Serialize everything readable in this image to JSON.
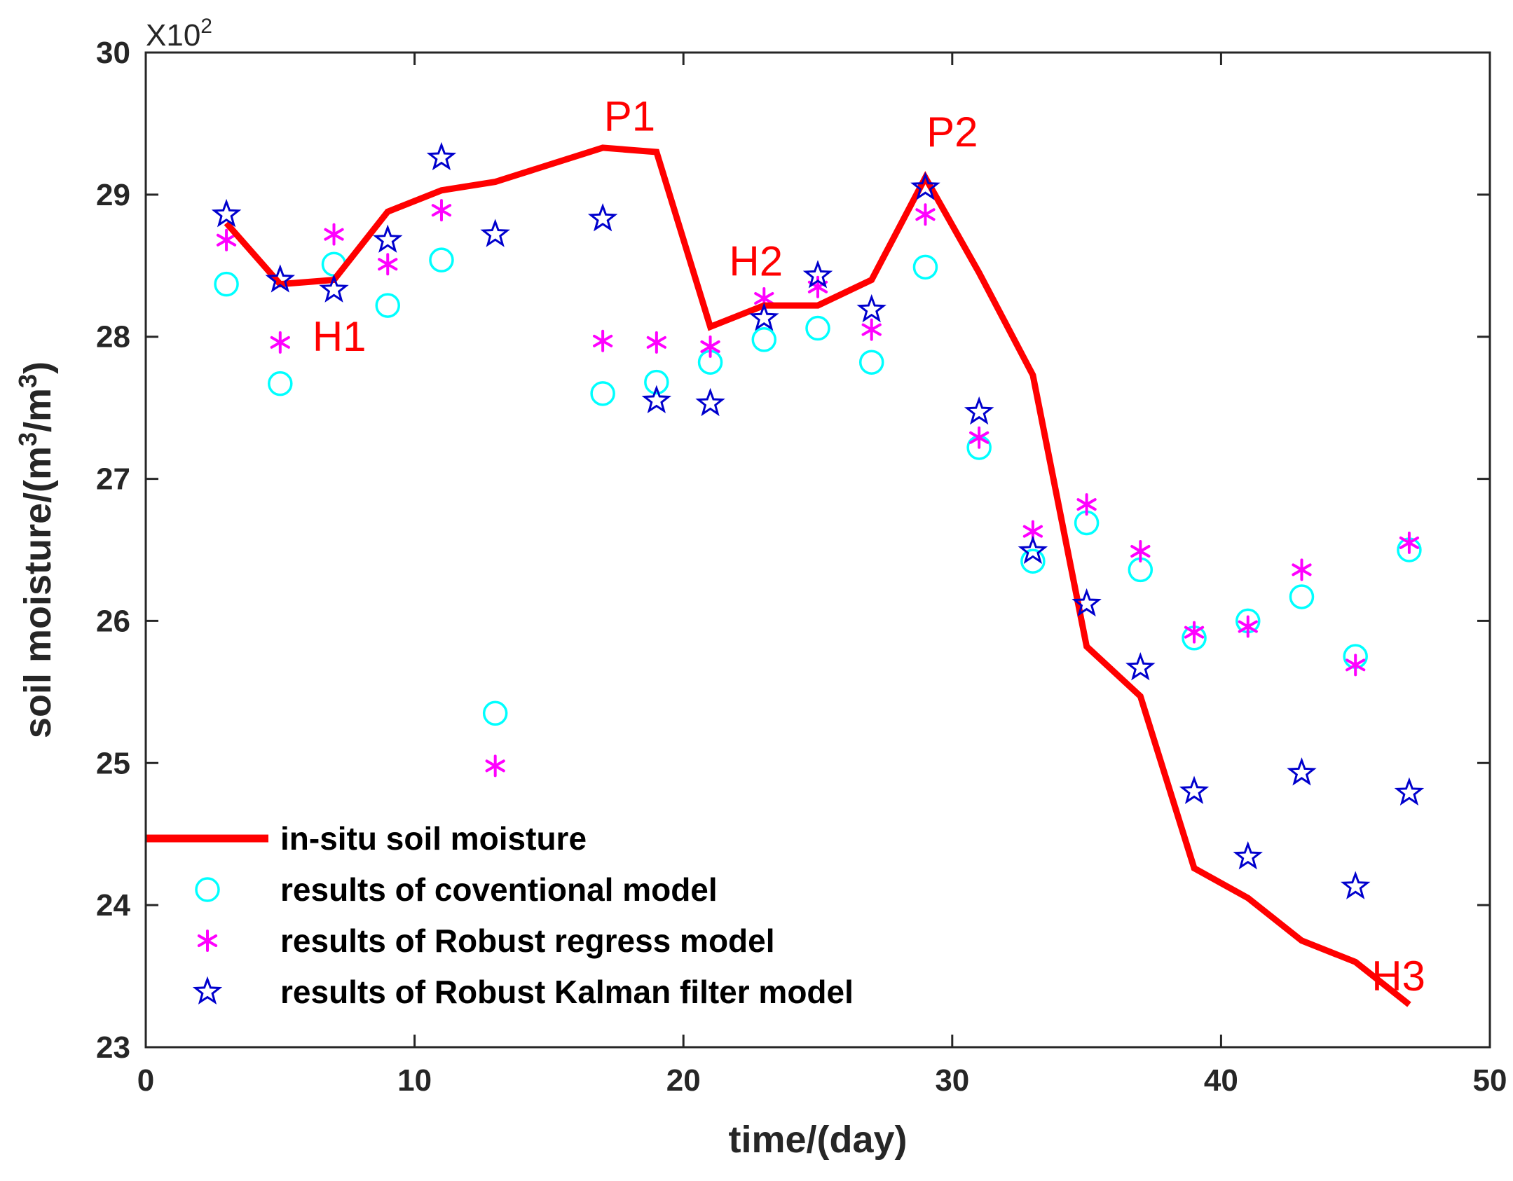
{
  "chart_data": {
    "type": "line",
    "xlabel": "time/(day)",
    "ylabel": "soil moisture/(m³/m³)",
    "y_multiplier": {
      "base": "X10",
      "exponent": "2"
    },
    "xlim": [
      0,
      50
    ],
    "ylim": [
      23,
      30
    ],
    "xticks": [
      0,
      10,
      20,
      30,
      40,
      50
    ],
    "yticks": [
      23,
      24,
      25,
      26,
      27,
      28,
      29,
      30
    ],
    "grid": false,
    "legend_placement": "bottom-left",
    "x": [
      3,
      5,
      7,
      9,
      11,
      13,
      17,
      19,
      21,
      23,
      25,
      27,
      29,
      31,
      33,
      35,
      37,
      39,
      41,
      43,
      45,
      47
    ],
    "series": [
      {
        "name": "in-situ soil moisture",
        "style": "line",
        "color": "#ff0000",
        "values": [
          28.8,
          28.37,
          28.4,
          28.88,
          29.03,
          29.09,
          29.33,
          29.3,
          28.07,
          28.22,
          28.22,
          28.4,
          29.12,
          28.45,
          27.73,
          25.82,
          25.47,
          24.26,
          24.05,
          23.75,
          23.6,
          23.3
        ]
      },
      {
        "name": "results of coventional model",
        "style": "circle",
        "color": "#00ffff",
        "values": [
          28.37,
          27.67,
          28.51,
          28.22,
          28.54,
          25.35,
          27.6,
          27.68,
          27.82,
          27.98,
          28.06,
          27.82,
          28.49,
          27.22,
          26.42,
          26.69,
          26.36,
          25.88,
          26.0,
          26.17,
          25.75,
          26.5
        ]
      },
      {
        "name": "results of Robust regress model",
        "style": "asterisk",
        "color": "#ff00ff",
        "values": [
          28.68,
          27.96,
          28.72,
          28.51,
          28.89,
          24.98,
          27.97,
          27.96,
          27.93,
          28.27,
          28.35,
          28.05,
          28.86,
          27.29,
          26.63,
          26.82,
          26.49,
          25.92,
          25.96,
          26.36,
          25.69,
          26.55
        ]
      },
      {
        "name": "results of Robust Kalman filter model",
        "style": "star",
        "color": "#0000cd",
        "values": [
          28.86,
          28.4,
          28.33,
          28.68,
          29.26,
          28.72,
          28.83,
          27.55,
          27.53,
          28.13,
          28.43,
          28.19,
          29.05,
          27.47,
          26.49,
          26.12,
          25.67,
          24.8,
          24.34,
          24.93,
          24.13,
          24.79
        ]
      }
    ],
    "annotations": [
      {
        "text": "P1",
        "x": 18.0,
        "y": 29.45
      },
      {
        "text": "P2",
        "x": 30.0,
        "y": 29.34
      },
      {
        "text": "H1",
        "x": 7.2,
        "y": 27.9
      },
      {
        "text": "H2",
        "x": 22.7,
        "y": 28.43
      },
      {
        "text": "H3",
        "x": 46.6,
        "y": 23.4
      }
    ]
  }
}
